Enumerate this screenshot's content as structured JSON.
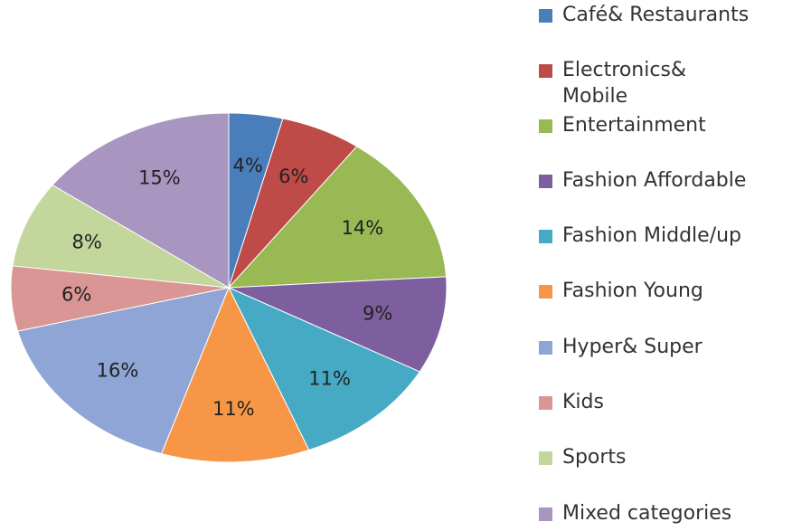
{
  "chart_data": {
    "type": "pie",
    "categories": [
      "Café& Restaurants",
      "Electronics&\nMobile",
      "Entertainment",
      "Fashion Affordable",
      "Fashion Middle/up",
      "Fashion Young",
      "Hyper& Super",
      "Kids",
      "Sports",
      "Mixed categories"
    ],
    "values": [
      4,
      6,
      14,
      9,
      11,
      11,
      16,
      6,
      8,
      15
    ],
    "value_labels": [
      "4%",
      "6%",
      "14%",
      "9%",
      "11%",
      "11%",
      "16%",
      "6%",
      "8%",
      "15%"
    ],
    "colors": [
      "#4a7ebb",
      "#be4b48",
      "#98b954",
      "#7d5fa0",
      "#46aac5",
      "#f79646",
      "#8ea5d5",
      "#d99694",
      "#c3d69b",
      "#a896c0"
    ],
    "legend": "right"
  }
}
